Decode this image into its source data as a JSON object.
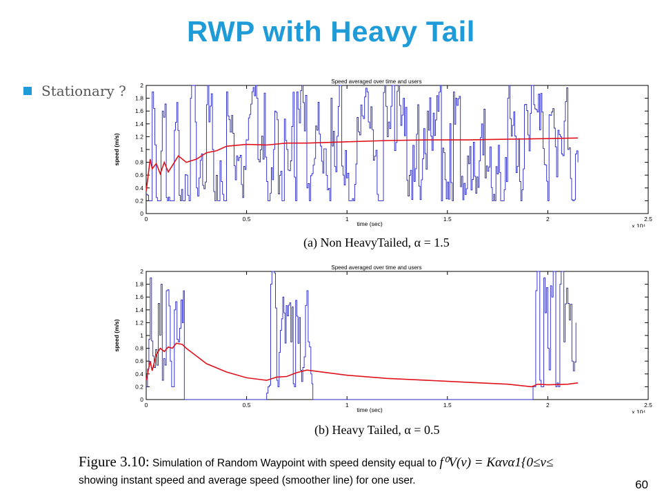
{
  "slide": {
    "title": "RWP with Heavy Tail",
    "bullet": "Stationary ?",
    "page_number": "60"
  },
  "colors": {
    "title": "#1f9bd7",
    "instant_speed": "#1f1fc8",
    "average_speed": "#e0101a"
  },
  "figure": {
    "caption_label": "Figure 3.10:",
    "caption_text_1": "Simulation of Random Waypoint with speed density equal to",
    "caption_math": "f⁰V(v) = Kαvα1{0≤v≤",
    "caption_text_2": "showing instant speed and average speed (smoother line) for one user.",
    "subcaption_a": "(a) Non HeavyTailed, α = 1.5",
    "subcaption_b": "(b) Heavy Tailed, α = 0.5"
  },
  "chart_data": [
    {
      "type": "line",
      "title": "Speed averaged over time and users",
      "xlabel": "time (sec)",
      "ylabel": "speed (m/s)",
      "x_exponent_label": "x 10⁴",
      "xlim": [
        0,
        2.5
      ],
      "ylim": [
        0,
        2
      ],
      "xticks": [
        0,
        0.5,
        1,
        1.5,
        2,
        2.5
      ],
      "yticks": [
        0,
        0.2,
        0.4,
        0.6,
        0.8,
        1,
        1.2,
        1.4,
        1.6,
        1.8,
        2
      ],
      "tick_labels_x": [
        "0",
        "0.5",
        "1",
        "1.5",
        "2",
        "2.5"
      ],
      "tick_labels_y": [
        "0",
        "0.2",
        "0.4",
        "0.6",
        "0.8",
        "1",
        "1.2",
        "1.4",
        "1.6",
        "1.8",
        "2"
      ],
      "grid": false,
      "series": [
        {
          "role": "instant",
          "style": "step",
          "seed": 7,
          "x": [
            0,
            0.03,
            0.05,
            0.08,
            0.1,
            0.14,
            0.2,
            0.22,
            0.25,
            0.3,
            0.33,
            0.38,
            0.4,
            0.45,
            0.48,
            0.55,
            0.6,
            0.64,
            0.7,
            0.75,
            0.8,
            0.85,
            0.92,
            0.98,
            1.05,
            1.1,
            1.15,
            1.2,
            1.28,
            1.34,
            1.4,
            1.47,
            1.53,
            1.6,
            1.67,
            1.73,
            1.8,
            1.86,
            1.93,
            2.0,
            2.05,
            2.1,
            2.15
          ],
          "y": [
            0.3,
            1.9,
            0.25,
            1.6,
            0.25,
            1.3,
            0.6,
            1.8,
            0.4,
            1.7,
            1.0,
            0.3,
            1.9,
            0.9,
            0.25,
            1.8,
            0.5,
            1.6,
            1.0,
            1.9,
            0.4,
            1.3,
            1.8,
            0.6,
            1.5,
            1.9,
            0.3,
            1.2,
            1.8,
            0.7,
            1.6,
            0.2,
            1.9,
            0.9,
            1.4,
            0.3,
            1.8,
            0.5,
            1.7,
            0.2,
            1.3,
            1.0,
            0.8
          ]
        },
        {
          "role": "average",
          "style": "smooth",
          "x": [
            0,
            0.02,
            0.03,
            0.05,
            0.07,
            0.09,
            0.11,
            0.13,
            0.16,
            0.2,
            0.25,
            0.3,
            0.35,
            0.4,
            0.5,
            0.6,
            0.7,
            0.8,
            0.9,
            1.0,
            1.2,
            1.4,
            1.6,
            1.8,
            2.0,
            2.15
          ],
          "y": [
            0.35,
            0.85,
            0.7,
            0.78,
            0.62,
            0.8,
            0.65,
            0.75,
            0.9,
            0.8,
            0.85,
            0.95,
            0.98,
            1.05,
            1.08,
            1.07,
            1.1,
            1.1,
            1.11,
            1.12,
            1.14,
            1.15,
            1.15,
            1.16,
            1.17,
            1.18
          ]
        }
      ]
    },
    {
      "type": "line",
      "title": "Speed averaged over time and users",
      "xlabel": "time (sec)",
      "ylabel": "speed (m/s)",
      "x_exponent_label": "x 10⁴",
      "xlim": [
        0,
        2.5
      ],
      "ylim": [
        0,
        2
      ],
      "xticks": [
        0,
        0.5,
        1,
        1.5,
        2,
        2.5
      ],
      "yticks": [
        0,
        0.2,
        0.4,
        0.6,
        0.8,
        1,
        1.2,
        1.4,
        1.6,
        1.8,
        2
      ],
      "tick_labels_x": [
        "0",
        "0.5",
        "1",
        "1.5",
        "2",
        "2.5"
      ],
      "tick_labels_y": [
        "0",
        "0.2",
        "0.4",
        "0.6",
        "0.8",
        "1",
        "1.2",
        "1.4",
        "1.6",
        "1.8",
        "2"
      ],
      "grid": false,
      "series": [
        {
          "role": "instant",
          "style": "step",
          "seed": 13,
          "x": [
            0,
            0.02,
            0.04,
            0.06,
            0.08,
            0.1,
            0.12,
            0.14,
            0.16,
            0.18,
            0.19,
            0.6,
            0.62,
            0.65,
            0.68,
            0.72,
            0.75,
            0.78,
            0.8,
            0.82,
            0.83,
            1.92,
            1.94,
            1.96,
            1.98,
            2.0,
            2.02,
            2.04,
            2.06,
            2.08,
            2.1,
            2.12,
            2.14
          ],
          "y": [
            0.2,
            1.9,
            0.5,
            1.5,
            0.3,
            1.7,
            0.6,
            1.4,
            0.9,
            1.2,
            0.0,
            0.1,
            1.8,
            0.3,
            1.6,
            0.9,
            1.3,
            0.5,
            1.7,
            0.4,
            0.0,
            0.0,
            1.7,
            0.3,
            1.9,
            0.8,
            1.6,
            0.2,
            1.8,
            0.9,
            1.5,
            0.6,
            1.2
          ]
        },
        {
          "role": "average",
          "style": "smooth",
          "x": [
            0,
            0.02,
            0.03,
            0.05,
            0.07,
            0.09,
            0.11,
            0.13,
            0.15,
            0.18,
            0.2,
            0.25,
            0.3,
            0.4,
            0.5,
            0.6,
            0.65,
            0.7,
            0.75,
            0.8,
            0.9,
            1.0,
            1.2,
            1.4,
            1.6,
            1.8,
            1.92,
            1.95,
            2.0,
            2.1,
            2.15
          ],
          "y": [
            0.3,
            0.6,
            0.45,
            0.7,
            0.8,
            0.75,
            0.82,
            0.8,
            0.88,
            0.86,
            0.8,
            0.68,
            0.56,
            0.43,
            0.34,
            0.3,
            0.35,
            0.36,
            0.42,
            0.46,
            0.42,
            0.38,
            0.33,
            0.3,
            0.27,
            0.24,
            0.2,
            0.24,
            0.23,
            0.24,
            0.26
          ]
        }
      ]
    }
  ]
}
